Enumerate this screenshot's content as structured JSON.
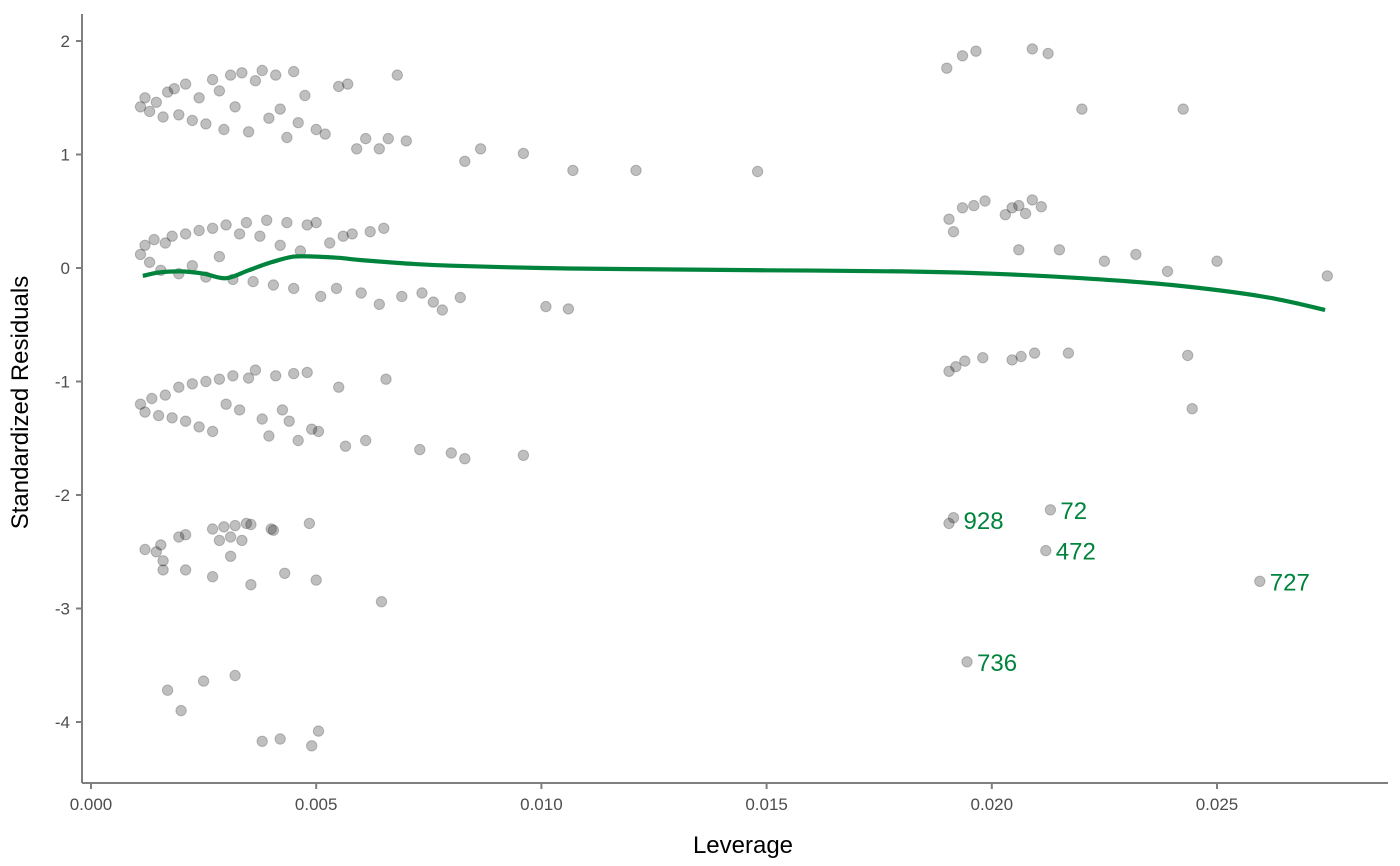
{
  "chart_data": {
    "type": "scatter",
    "title": "",
    "xlabel": "Leverage",
    "ylabel": "Standardized Residuals",
    "xlim": [
      -0.0002,
      0.0288
    ],
    "ylim": [
      -4.5,
      2.2
    ],
    "x_ticks": [
      0.0,
      0.005,
      0.01,
      0.015,
      0.02,
      0.025
    ],
    "x_tick_labels": [
      "0.000",
      "0.005",
      "0.010",
      "0.015",
      "0.020",
      "0.025"
    ],
    "y_ticks": [
      -4,
      -3,
      -2,
      -1,
      0,
      1,
      2
    ],
    "y_tick_labels": [
      "-4",
      "-3",
      "-2",
      "-1",
      "0",
      "1",
      "2"
    ],
    "grid": false,
    "point_color": "#000000",
    "point_opacity": 0.25,
    "smooth_color": "#00843D",
    "label_color": "#00843D",
    "points": [
      [
        0.0011,
        1.42
      ],
      [
        0.0012,
        1.5
      ],
      [
        0.0013,
        1.38
      ],
      [
        0.00145,
        1.46
      ],
      [
        0.0016,
        1.33
      ],
      [
        0.0017,
        1.55
      ],
      [
        0.00185,
        1.58
      ],
      [
        0.00195,
        1.35
      ],
      [
        0.0021,
        1.62
      ],
      [
        0.00225,
        1.3
      ],
      [
        0.0024,
        1.5
      ],
      [
        0.00255,
        1.27
      ],
      [
        0.0027,
        1.66
      ],
      [
        0.00285,
        1.56
      ],
      [
        0.00295,
        1.22
      ],
      [
        0.0031,
        1.7
      ],
      [
        0.0032,
        1.42
      ],
      [
        0.00335,
        1.72
      ],
      [
        0.0035,
        1.2
      ],
      [
        0.00365,
        1.65
      ],
      [
        0.0038,
        1.74
      ],
      [
        0.00395,
        1.32
      ],
      [
        0.0041,
        1.7
      ],
      [
        0.0042,
        1.4
      ],
      [
        0.00435,
        1.15
      ],
      [
        0.0045,
        1.73
      ],
      [
        0.0046,
        1.28
      ],
      [
        0.00475,
        1.52
      ],
      [
        0.005,
        1.22
      ],
      [
        0.0052,
        1.18
      ],
      [
        0.0055,
        1.6
      ],
      [
        0.0057,
        1.62
      ],
      [
        0.0059,
        1.05
      ],
      [
        0.0061,
        1.14
      ],
      [
        0.0064,
        1.05
      ],
      [
        0.0066,
        1.14
      ],
      [
        0.0068,
        1.7
      ],
      [
        0.007,
        1.12
      ],
      [
        0.0083,
        0.94
      ],
      [
        0.00865,
        1.05
      ],
      [
        0.0096,
        1.01
      ],
      [
        0.0107,
        0.86
      ],
      [
        0.0121,
        0.86
      ],
      [
        0.0148,
        0.85
      ],
      [
        0.019,
        1.76
      ],
      [
        0.01935,
        1.87
      ],
      [
        0.01965,
        1.91
      ],
      [
        0.0209,
        1.93
      ],
      [
        0.02125,
        1.89
      ],
      [
        0.022,
        1.4
      ],
      [
        0.02425,
        1.4
      ],
      [
        0.0011,
        0.12
      ],
      [
        0.0012,
        0.2
      ],
      [
        0.0013,
        0.05
      ],
      [
        0.0014,
        0.25
      ],
      [
        0.00155,
        -0.02
      ],
      [
        0.00165,
        0.22
      ],
      [
        0.0018,
        0.28
      ],
      [
        0.00195,
        -0.05
      ],
      [
        0.0021,
        0.3
      ],
      [
        0.00225,
        0.02
      ],
      [
        0.0024,
        0.33
      ],
      [
        0.00255,
        -0.08
      ],
      [
        0.0027,
        0.35
      ],
      [
        0.00285,
        0.1
      ],
      [
        0.003,
        0.38
      ],
      [
        0.00315,
        -0.1
      ],
      [
        0.0033,
        0.3
      ],
      [
        0.00345,
        0.4
      ],
      [
        0.0036,
        -0.12
      ],
      [
        0.00375,
        0.28
      ],
      [
        0.0039,
        0.42
      ],
      [
        0.00405,
        -0.15
      ],
      [
        0.0042,
        0.2
      ],
      [
        0.00435,
        0.4
      ],
      [
        0.0045,
        -0.18
      ],
      [
        0.00465,
        0.15
      ],
      [
        0.0048,
        0.38
      ],
      [
        0.005,
        0.4
      ],
      [
        0.0051,
        -0.25
      ],
      [
        0.0053,
        0.22
      ],
      [
        0.00545,
        -0.18
      ],
      [
        0.0056,
        0.28
      ],
      [
        0.0058,
        0.3
      ],
      [
        0.006,
        -0.22
      ],
      [
        0.0062,
        0.32
      ],
      [
        0.0064,
        -0.32
      ],
      [
        0.0065,
        0.35
      ],
      [
        0.0069,
        -0.25
      ],
      [
        0.00735,
        -0.22
      ],
      [
        0.0076,
        -0.3
      ],
      [
        0.0078,
        -0.37
      ],
      [
        0.0082,
        -0.26
      ],
      [
        0.0101,
        -0.34
      ],
      [
        0.0106,
        -0.36
      ],
      [
        0.01905,
        0.43
      ],
      [
        0.01915,
        0.32
      ],
      [
        0.01935,
        0.53
      ],
      [
        0.0196,
        0.55
      ],
      [
        0.01985,
        0.59
      ],
      [
        0.0203,
        0.47
      ],
      [
        0.02045,
        0.53
      ],
      [
        0.0206,
        0.55
      ],
      [
        0.02075,
        0.48
      ],
      [
        0.0209,
        0.6
      ],
      [
        0.0211,
        0.54
      ],
      [
        0.0206,
        0.16
      ],
      [
        0.0215,
        0.16
      ],
      [
        0.0225,
        0.06
      ],
      [
        0.0232,
        0.12
      ],
      [
        0.0239,
        -0.03
      ],
      [
        0.025,
        0.06
      ],
      [
        0.02745,
        -0.07
      ],
      [
        0.0011,
        -1.2
      ],
      [
        0.0012,
        -1.27
      ],
      [
        0.00135,
        -1.15
      ],
      [
        0.0015,
        -1.3
      ],
      [
        0.00165,
        -1.12
      ],
      [
        0.0018,
        -1.32
      ],
      [
        0.00195,
        -1.05
      ],
      [
        0.0021,
        -1.35
      ],
      [
        0.00225,
        -1.02
      ],
      [
        0.0024,
        -1.4
      ],
      [
        0.00255,
        -1.0
      ],
      [
        0.0027,
        -1.44
      ],
      [
        0.00285,
        -0.98
      ],
      [
        0.003,
        -1.2
      ],
      [
        0.00315,
        -0.95
      ],
      [
        0.0033,
        -1.25
      ],
      [
        0.0035,
        -0.97
      ],
      [
        0.00365,
        -0.9
      ],
      [
        0.0038,
        -1.33
      ],
      [
        0.00395,
        -1.48
      ],
      [
        0.0041,
        -0.95
      ],
      [
        0.00425,
        -1.25
      ],
      [
        0.0044,
        -1.35
      ],
      [
        0.0045,
        -0.93
      ],
      [
        0.0046,
        -1.52
      ],
      [
        0.0048,
        -0.92
      ],
      [
        0.0049,
        -1.42
      ],
      [
        0.00505,
        -1.44
      ],
      [
        0.0055,
        -1.05
      ],
      [
        0.00565,
        -1.57
      ],
      [
        0.0061,
        -1.52
      ],
      [
        0.00655,
        -0.98
      ],
      [
        0.0073,
        -1.6
      ],
      [
        0.008,
        -1.63
      ],
      [
        0.0083,
        -1.68
      ],
      [
        0.0096,
        -1.65
      ],
      [
        0.01905,
        -0.91
      ],
      [
        0.0192,
        -0.87
      ],
      [
        0.0194,
        -0.82
      ],
      [
        0.0198,
        -0.79
      ],
      [
        0.02045,
        -0.81
      ],
      [
        0.02065,
        -0.78
      ],
      [
        0.02095,
        -0.75
      ],
      [
        0.0217,
        -0.75
      ],
      [
        0.02435,
        -0.77
      ],
      [
        0.02445,
        -1.24
      ],
      [
        0.0012,
        -2.48
      ],
      [
        0.00145,
        -2.5
      ],
      [
        0.00155,
        -2.44
      ],
      [
        0.0016,
        -2.58
      ],
      [
        0.0016,
        -2.66
      ],
      [
        0.00195,
        -2.37
      ],
      [
        0.0021,
        -2.35
      ],
      [
        0.0021,
        -2.66
      ],
      [
        0.0027,
        -2.3
      ],
      [
        0.0027,
        -2.72
      ],
      [
        0.00285,
        -2.4
      ],
      [
        0.00295,
        -2.28
      ],
      [
        0.0031,
        -2.37
      ],
      [
        0.0031,
        -2.54
      ],
      [
        0.0032,
        -2.27
      ],
      [
        0.00335,
        -2.4
      ],
      [
        0.00345,
        -2.25
      ],
      [
        0.00355,
        -2.26
      ],
      [
        0.00355,
        -2.79
      ],
      [
        0.004,
        -2.3
      ],
      [
        0.00405,
        -2.31
      ],
      [
        0.0043,
        -2.69
      ],
      [
        0.00485,
        -2.25
      ],
      [
        0.005,
        -2.75
      ],
      [
        0.00645,
        -2.94
      ],
      [
        0.01905,
        -2.25
      ],
      [
        0.01915,
        -2.2
      ],
      [
        0.0213,
        -2.13
      ],
      [
        0.0212,
        -2.49
      ],
      [
        0.02595,
        -2.76
      ],
      [
        0.01945,
        -3.47
      ],
      [
        0.0017,
        -3.72
      ],
      [
        0.002,
        -3.9
      ],
      [
        0.0025,
        -3.64
      ],
      [
        0.0032,
        -3.59
      ],
      [
        0.0038,
        -4.17
      ],
      [
        0.0042,
        -4.15
      ],
      [
        0.0049,
        -4.21
      ],
      [
        0.00505,
        -4.08
      ]
    ],
    "smooth_line": {
      "x": [
        0.00115,
        0.0015,
        0.002,
        0.0025,
        0.003,
        0.0035,
        0.004,
        0.0045,
        0.005,
        0.0055,
        0.006,
        0.007,
        0.008,
        0.01,
        0.012,
        0.015,
        0.018,
        0.02,
        0.022,
        0.024,
        0.026,
        0.0274
      ],
      "y": [
        -0.07,
        -0.04,
        -0.03,
        -0.05,
        -0.09,
        -0.02,
        0.05,
        0.1,
        0.1,
        0.09,
        0.07,
        0.04,
        0.02,
        0.0,
        -0.01,
        -0.02,
        -0.03,
        -0.05,
        -0.09,
        -0.15,
        -0.25,
        -0.37
      ]
    },
    "labels": [
      {
        "text": "928",
        "x": 0.01915,
        "y": -2.22
      },
      {
        "text": "72",
        "x": 0.0213,
        "y": -2.13
      },
      {
        "text": "472",
        "x": 0.0212,
        "y": -2.49
      },
      {
        "text": "727",
        "x": 0.02595,
        "y": -2.76
      },
      {
        "text": "736",
        "x": 0.01945,
        "y": -3.47
      }
    ]
  }
}
